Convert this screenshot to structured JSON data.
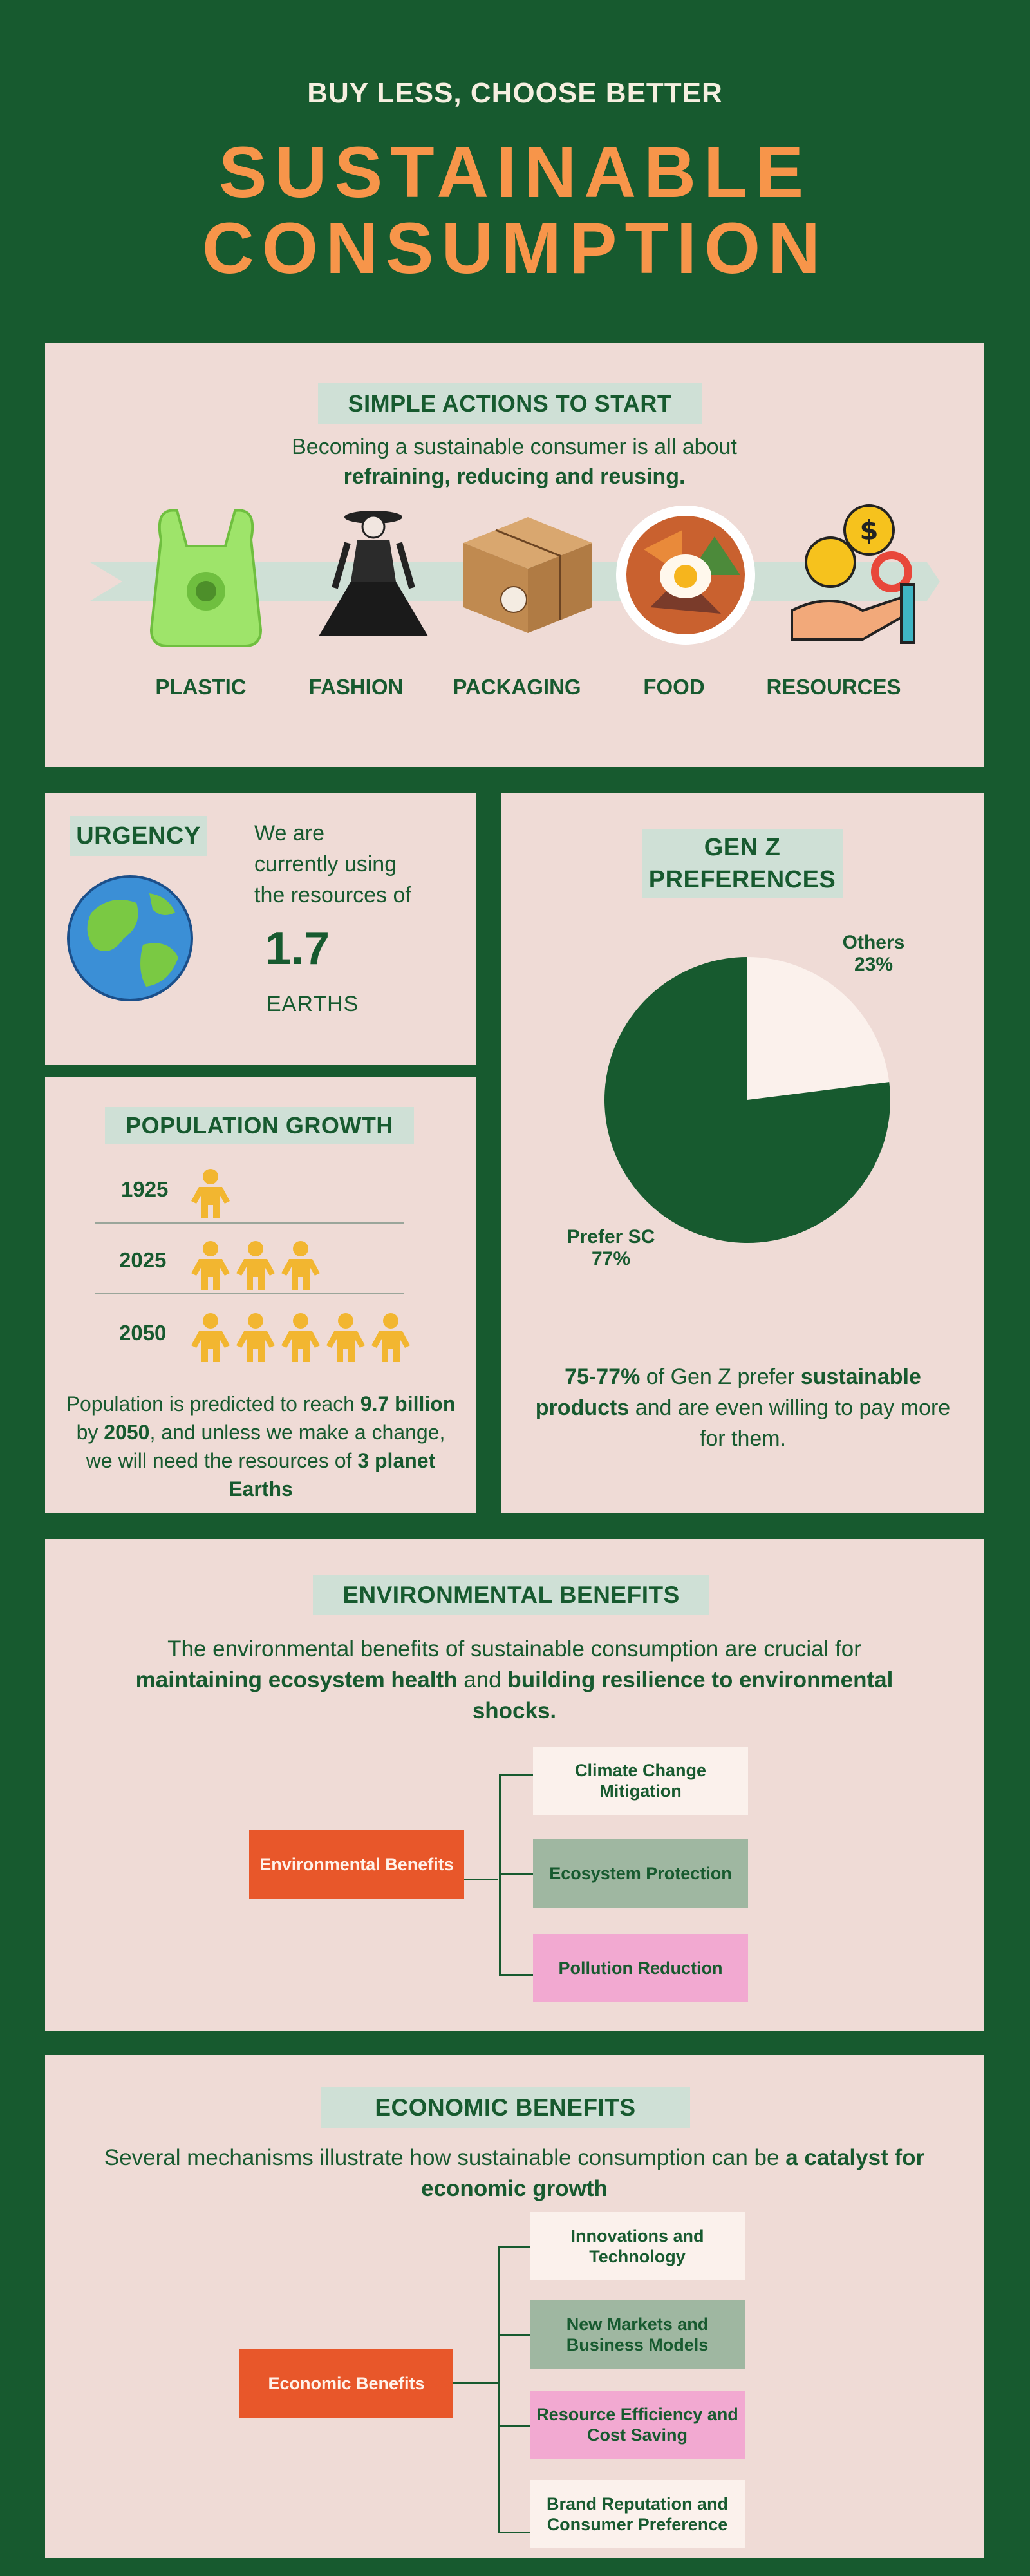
{
  "header": {
    "subtitle": "BUY LESS, CHOOSE BETTER",
    "title_line1": "SUSTAINABLE",
    "title_line2": "CONSUMPTION"
  },
  "actions": {
    "heading": "SIMPLE ACTIONS TO START",
    "intro_line1": "Becoming a sustainable consumer is all about",
    "intro_bold": "refraining, reducing and reusing.",
    "items": [
      {
        "label": "PLASTIC",
        "icon": "plastic-bag-icon"
      },
      {
        "label": "FASHION",
        "icon": "fashion-figure-icon"
      },
      {
        "label": "PACKAGING",
        "icon": "gift-box-icon"
      },
      {
        "label": "FOOD",
        "icon": "food-bowl-icon"
      },
      {
        "label": "RESOURCES",
        "icon": "resources-hand-icon"
      }
    ]
  },
  "urgency": {
    "heading": "URGENCY",
    "text_l1": "We are",
    "text_l2": "currently using",
    "text_l3": "the resources of",
    "value": "1.7",
    "unit": "EARTHS",
    "icon": "earth-globe-icon"
  },
  "population": {
    "heading": "POPULATION GROWTH",
    "rows": [
      {
        "year": "1925",
        "count": 1
      },
      {
        "year": "2025",
        "count": 3
      },
      {
        "year": "2050",
        "count": 5
      }
    ],
    "text_p1": "Population is predicted to reach ",
    "text_b1": "9.7 billion",
    "text_p2": " by ",
    "text_b2": "2050",
    "text_p3": ", and unless we make a change, we will need the resources of ",
    "text_b3": "3 planet Earths"
  },
  "genz": {
    "heading_l1": "GEN Z",
    "heading_l2": "PREFERENCES",
    "text_b1": "75-77%",
    "text_p1": " of Gen Z prefer ",
    "text_b2": "sustainable products",
    "text_p2": " and are even willing to pay more for them."
  },
  "chart_data": {
    "type": "pie",
    "title": "",
    "slices": [
      {
        "label": "Prefer SC",
        "value": 77,
        "display": "77%",
        "color": "#175a2f"
      },
      {
        "label": "Others",
        "value": 23,
        "display": "23%",
        "color": "#fbf1ec"
      }
    ]
  },
  "environmental": {
    "heading": "ENVIRONMENTAL BENEFITS",
    "intro_p1": "The environmental benefits of sustainable consumption are crucial for ",
    "intro_b1": "maintaining ecosystem health",
    "intro_p2": " and ",
    "intro_b2": "building resilience to environmental shocks.",
    "root": "Environmental Benefits",
    "children": [
      "Climate Change Mitigation",
      "Ecosystem Protection",
      "Pollution Reduction"
    ]
  },
  "economic": {
    "heading": "ECONOMIC BENEFITS",
    "intro_p1": "Several mechanisms illustrate how sustainable consumption can be ",
    "intro_b1": "a catalyst for economic growth",
    "root": "Economic Benefits",
    "children": [
      "Innovations and Technology",
      "New Markets and Business Models",
      "Resource Efficiency and Cost Saving",
      "Brand Reputation and Consumer Preference"
    ]
  },
  "colors": {
    "background": "#175a2f",
    "panel": "#efdbd6",
    "accent_orange": "#f7954a",
    "root_box": "#e8572a",
    "tag": "#cfe0d6",
    "person": "#f2b630"
  }
}
